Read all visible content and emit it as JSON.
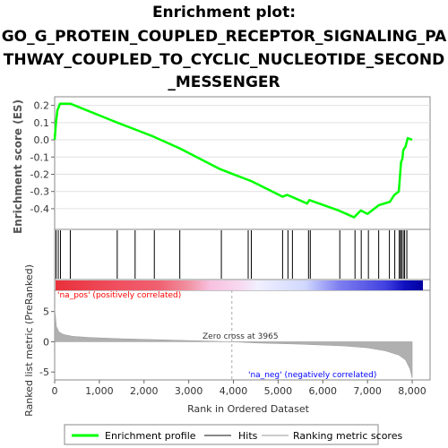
{
  "title_lines": [
    "Enrichment plot:",
    "GO_G_PROTEIN_COUPLED_RECEPTOR_SIGNALING_PA",
    "THWAY_COUPLED_TO_CYCLIC_NUCLEOTIDE_SECOND",
    "_MESSENGER"
  ],
  "colors": {
    "enrichment": "#00ff00",
    "hits": "#000000",
    "metric_fill": "#b0b0b0",
    "pos_label": "#ff0000",
    "neg_label": "#0000ff"
  },
  "chart_data": {
    "type": "line",
    "xlabel": "Rank in Ordered Dataset",
    "x_ticks": [
      "0",
      "1,000",
      "2,000",
      "3,000",
      "4,000",
      "5,000",
      "6,000",
      "7,000",
      "8,000"
    ],
    "xlim": [
      0,
      8400
    ],
    "es_panel": {
      "ylabel": "Enrichment score (ES)",
      "ylim": [
        -0.52,
        0.25
      ],
      "y_ticks": [
        "0.2",
        "0.1",
        "0.0",
        "-0.1",
        "-0.2",
        "-0.3",
        "-0.4"
      ],
      "series": [
        {
          "x": [
            0,
            30,
            60,
            120,
            350,
            1400,
            1800,
            2200,
            2800,
            3700,
            4300,
            4400,
            5100,
            5200,
            5300,
            5650,
            5700,
            6350,
            6700,
            6850,
            7000,
            7250,
            7500,
            7600,
            7700,
            7730,
            7750,
            7780,
            7800,
            7850,
            7900,
            8000
          ],
          "y": [
            0.0,
            0.1,
            0.17,
            0.21,
            0.21,
            0.1,
            0.06,
            0.02,
            -0.05,
            -0.17,
            -0.23,
            -0.24,
            -0.33,
            -0.32,
            -0.33,
            -0.37,
            -0.35,
            -0.41,
            -0.45,
            -0.41,
            -0.43,
            -0.38,
            -0.36,
            -0.32,
            -0.3,
            -0.2,
            -0.13,
            -0.11,
            -0.06,
            -0.04,
            0.01,
            0.0
          ]
        }
      ]
    },
    "hits": [
      30,
      80,
      130,
      350,
      1400,
      1800,
      2230,
      2800,
      3730,
      4330,
      4400,
      5100,
      5220,
      5320,
      5680,
      5720,
      6380,
      6720,
      6860,
      7020,
      7250,
      7490,
      7610,
      7710,
      7740,
      7760,
      7800,
      7830,
      7880
    ],
    "metric_panel": {
      "ylabel": "Ranked list metric (PreRanked)",
      "ylim": [
        -6.3,
        8.5
      ],
      "y_ticks": [
        "5",
        "0",
        "-5"
      ],
      "zero_cross_label": "Zero cross at 3965",
      "zero_cross": 3965,
      "pos_label": "'na_pos' (positively correlated)",
      "neg_label": "'na_neg' (negatively correlated)",
      "curve": {
        "x": [
          0,
          40,
          100,
          200,
          400,
          800,
          1500,
          2500,
          3500,
          3965,
          4500,
          5500,
          6500,
          7000,
          7400,
          7700,
          7850,
          7950,
          8000
        ],
        "y": [
          5.5,
          2.5,
          1.6,
          1.2,
          0.9,
          0.7,
          0.5,
          0.3,
          0.1,
          0.0,
          -0.2,
          -0.4,
          -0.7,
          -1.0,
          -1.5,
          -2.2,
          -3.0,
          -4.5,
          -6.0
        ]
      }
    },
    "legend": [
      "Enrichment profile",
      "Hits",
      "Ranking metric scores"
    ],
    "legend_placement": "bottom"
  }
}
